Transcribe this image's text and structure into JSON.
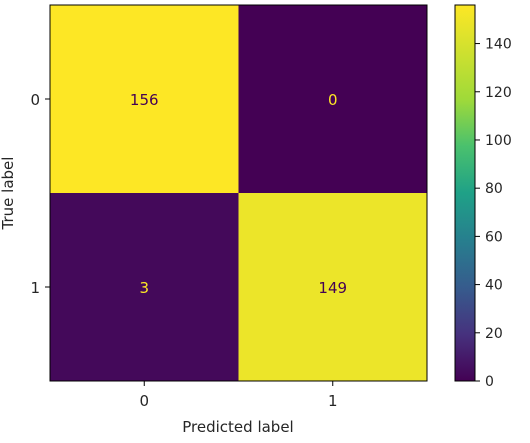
{
  "chart_data": {
    "type": "heatmap",
    "title": "",
    "xlabel": "Predicted label",
    "ylabel": "True label",
    "x_categories": [
      "0",
      "1"
    ],
    "y_categories": [
      "0",
      "1"
    ],
    "values": [
      [
        156,
        0
      ],
      [
        3,
        149
      ]
    ],
    "colormap": "viridis",
    "colorbar": {
      "range": [
        0,
        156
      ],
      "ticks": [
        "0",
        "20",
        "40",
        "60",
        "80",
        "100",
        "120",
        "140"
      ]
    },
    "cell_text_colors": {
      "on_light": "#440154",
      "on_dark": "#fde725"
    },
    "grid": false
  }
}
